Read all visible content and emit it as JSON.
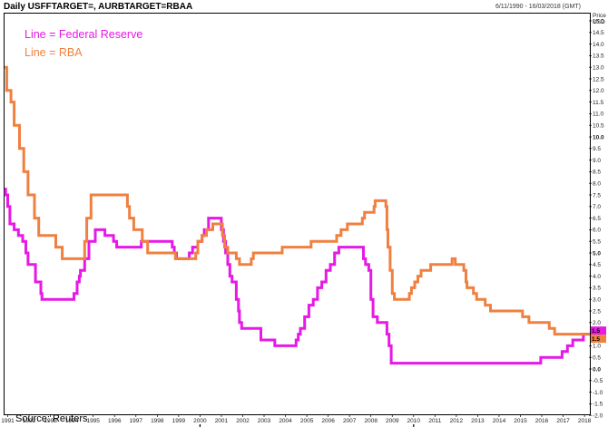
{
  "header": {
    "title": "Daily USFFTARGET=, AURBTARGET=RBAA",
    "date_range": "6/11/1990 - 16/03/2018 (GMT)"
  },
  "source_note": "Source: Reuters",
  "chart_data": {
    "type": "line",
    "x_axis": {
      "min_year": 1990.85,
      "max_year": 2018.25,
      "year_ticks": [
        "1991",
        "1992",
        "1993",
        "1994",
        "1995",
        "1996",
        "1997",
        "1998",
        "1999",
        "2000",
        "2001",
        "2002",
        "2003",
        "2004",
        "2005",
        "2006",
        "2007",
        "2008",
        "2009",
        "2010",
        "2011",
        "2012",
        "2013",
        "2014",
        "2015",
        "2016",
        "2017",
        "2018"
      ],
      "decade_labels": [
        {
          "label": "1990",
          "year": 1995.0
        },
        {
          "label": "2000",
          "year": 2006.0
        },
        {
          "label": "2010",
          "year": 2014.5
        }
      ]
    },
    "y_axis": {
      "unit_labels": [
        "Price",
        "USD"
      ],
      "ylim": [
        -2.3,
        15.2
      ],
      "ticks": [
        "15.0",
        "14.5",
        "14.0",
        "13.5",
        "13.0",
        "12.5",
        "12.0",
        "11.5",
        "11.0",
        "10.5",
        "10.0",
        "9.5",
        "9.0",
        "8.5",
        "8.0",
        "7.5",
        "7.0",
        "6.5",
        "6.0",
        "5.5",
        "5.0",
        "4.5",
        "4.0",
        "3.5",
        "3.0",
        "2.5",
        "2.0",
        "1.5",
        "1.0",
        "0.5",
        "0.0",
        "-0.5",
        "-1.0",
        "-1.5",
        "-2.0"
      ],
      "bold_ticks": [
        "10.0",
        "5.0",
        "0.0"
      ]
    },
    "series": [
      {
        "name": "Line = Federal Reserve",
        "color": "#e619e6",
        "end_label": "1.5",
        "points": [
          [
            1990.85,
            7.75
          ],
          [
            1990.9,
            7.5
          ],
          [
            1991.0,
            7.0
          ],
          [
            1991.1,
            6.25
          ],
          [
            1991.3,
            6.0
          ],
          [
            1991.5,
            5.75
          ],
          [
            1991.7,
            5.5
          ],
          [
            1991.85,
            5.0
          ],
          [
            1991.95,
            4.5
          ],
          [
            1992.3,
            3.75
          ],
          [
            1992.55,
            3.25
          ],
          [
            1992.6,
            3.0
          ],
          [
            1994.1,
            3.25
          ],
          [
            1994.25,
            3.75
          ],
          [
            1994.35,
            4.0
          ],
          [
            1994.4,
            4.25
          ],
          [
            1994.6,
            4.75
          ],
          [
            1994.8,
            5.5
          ],
          [
            1995.1,
            6.0
          ],
          [
            1995.55,
            5.75
          ],
          [
            1995.95,
            5.5
          ],
          [
            1996.1,
            5.25
          ],
          [
            1997.25,
            5.5
          ],
          [
            1998.7,
            5.25
          ],
          [
            1998.8,
            5.0
          ],
          [
            1998.9,
            4.75
          ],
          [
            1999.5,
            5.0
          ],
          [
            1999.65,
            5.25
          ],
          [
            1999.9,
            5.5
          ],
          [
            2000.1,
            5.75
          ],
          [
            2000.2,
            6.0
          ],
          [
            2000.4,
            6.5
          ],
          [
            2001.0,
            6.0
          ],
          [
            2001.1,
            5.5
          ],
          [
            2001.2,
            5.0
          ],
          [
            2001.3,
            4.5
          ],
          [
            2001.4,
            4.0
          ],
          [
            2001.5,
            3.75
          ],
          [
            2001.7,
            3.0
          ],
          [
            2001.8,
            2.5
          ],
          [
            2001.85,
            2.0
          ],
          [
            2001.95,
            1.75
          ],
          [
            2002.85,
            1.25
          ],
          [
            2003.5,
            1.0
          ],
          [
            2004.5,
            1.25
          ],
          [
            2004.6,
            1.5
          ],
          [
            2004.7,
            1.75
          ],
          [
            2004.9,
            2.25
          ],
          [
            2005.1,
            2.75
          ],
          [
            2005.3,
            3.0
          ],
          [
            2005.5,
            3.5
          ],
          [
            2005.7,
            3.75
          ],
          [
            2005.9,
            4.25
          ],
          [
            2006.1,
            4.5
          ],
          [
            2006.3,
            5.0
          ],
          [
            2006.5,
            5.25
          ],
          [
            2007.65,
            4.75
          ],
          [
            2007.75,
            4.5
          ],
          [
            2007.9,
            4.25
          ],
          [
            2008.0,
            3.0
          ],
          [
            2008.1,
            2.25
          ],
          [
            2008.3,
            2.0
          ],
          [
            2008.75,
            1.5
          ],
          [
            2008.85,
            1.0
          ],
          [
            2008.95,
            0.25
          ],
          [
            2015.95,
            0.5
          ],
          [
            2016.95,
            0.75
          ],
          [
            2017.2,
            1.0
          ],
          [
            2017.45,
            1.25
          ],
          [
            2017.95,
            1.5
          ],
          [
            2018.25,
            1.5
          ]
        ]
      },
      {
        "name": "Line = RBA",
        "color": "#f08040",
        "end_label": "1.5",
        "points": [
          [
            1990.85,
            13.0
          ],
          [
            1990.95,
            12.0
          ],
          [
            1991.15,
            11.5
          ],
          [
            1991.3,
            10.5
          ],
          [
            1991.55,
            9.5
          ],
          [
            1991.75,
            8.5
          ],
          [
            1991.95,
            7.5
          ],
          [
            1992.25,
            6.5
          ],
          [
            1992.45,
            5.75
          ],
          [
            1993.25,
            5.25
          ],
          [
            1993.55,
            4.75
          ],
          [
            1994.6,
            5.5
          ],
          [
            1994.7,
            6.5
          ],
          [
            1994.9,
            7.5
          ],
          [
            1996.6,
            7.0
          ],
          [
            1996.7,
            6.5
          ],
          [
            1996.9,
            6.0
          ],
          [
            1997.3,
            5.5
          ],
          [
            1997.55,
            5.0
          ],
          [
            1998.85,
            4.75
          ],
          [
            1999.8,
            5.0
          ],
          [
            1999.9,
            5.5
          ],
          [
            2000.1,
            5.75
          ],
          [
            2000.3,
            6.0
          ],
          [
            2000.6,
            6.25
          ],
          [
            2001.05,
            5.75
          ],
          [
            2001.15,
            5.25
          ],
          [
            2001.3,
            5.0
          ],
          [
            2001.7,
            4.75
          ],
          [
            2001.85,
            4.5
          ],
          [
            2002.4,
            4.75
          ],
          [
            2002.5,
            5.0
          ],
          [
            2003.85,
            5.25
          ],
          [
            2005.2,
            5.5
          ],
          [
            2006.4,
            5.75
          ],
          [
            2006.6,
            6.0
          ],
          [
            2006.9,
            6.25
          ],
          [
            2007.6,
            6.5
          ],
          [
            2007.7,
            6.75
          ],
          [
            2008.15,
            7.0
          ],
          [
            2008.2,
            7.25
          ],
          [
            2008.7,
            7.0
          ],
          [
            2008.75,
            6.0
          ],
          [
            2008.8,
            5.25
          ],
          [
            2008.9,
            4.25
          ],
          [
            2009.0,
            3.25
          ],
          [
            2009.1,
            3.0
          ],
          [
            2009.8,
            3.25
          ],
          [
            2009.9,
            3.5
          ],
          [
            2010.05,
            3.75
          ],
          [
            2010.2,
            4.0
          ],
          [
            2010.35,
            4.25
          ],
          [
            2010.8,
            4.5
          ],
          [
            2011.8,
            4.75
          ],
          [
            2011.95,
            4.5
          ],
          [
            2012.35,
            4.25
          ],
          [
            2012.45,
            3.75
          ],
          [
            2012.5,
            3.5
          ],
          [
            2012.8,
            3.25
          ],
          [
            2012.95,
            3.0
          ],
          [
            2013.35,
            2.75
          ],
          [
            2013.6,
            2.5
          ],
          [
            2015.1,
            2.25
          ],
          [
            2015.4,
            2.0
          ],
          [
            2016.35,
            1.75
          ],
          [
            2016.6,
            1.5
          ],
          [
            2018.25,
            1.5
          ]
        ]
      }
    ]
  }
}
